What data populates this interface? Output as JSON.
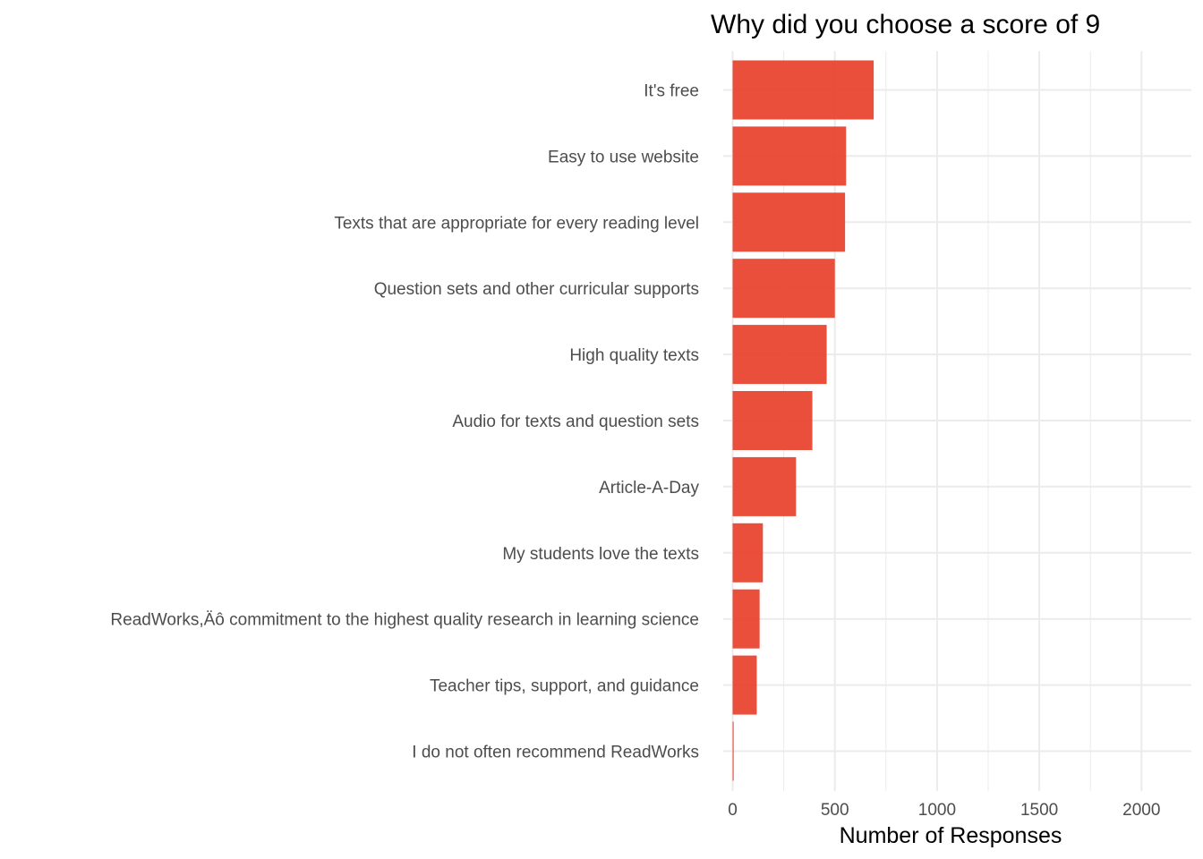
{
  "chart_data": {
    "type": "bar",
    "orientation": "horizontal",
    "title": "Why did you choose a score of 9",
    "xlabel": "Number of Responses",
    "ylabel": "",
    "xlim": [
      0,
      2250
    ],
    "x_ticks": [
      0,
      500,
      1000,
      1500,
      2000
    ],
    "x_tick_labels": [
      "0",
      "500",
      "1000",
      "1500",
      "2000"
    ],
    "grid": true,
    "legend": "none",
    "bar_color": "#e8402a",
    "categories": [
      "It's free",
      "Easy to use website",
      "Texts that are appropriate for every reading level",
      "Question sets and other curricular supports",
      "High quality texts",
      "Audio for texts and question sets",
      "Article-A-Day",
      "My students love the texts",
      "ReadWorks,Äô commitment to the highest quality research in learning science",
      "Teacher tips, support, and guidance",
      "I do not often recommend ReadWorks"
    ],
    "values": [
      690,
      555,
      550,
      500,
      460,
      390,
      310,
      148,
      132,
      118,
      5
    ]
  }
}
